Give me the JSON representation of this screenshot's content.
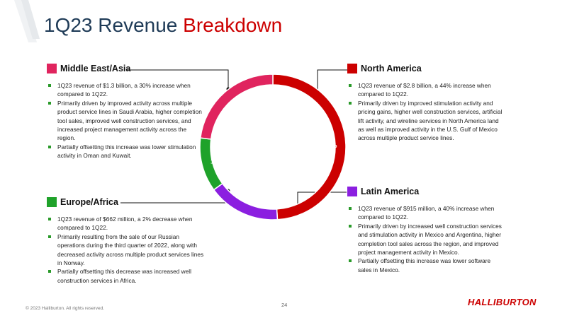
{
  "title": {
    "part1": "1Q23 Revenue",
    "part2": "Breakdown"
  },
  "colors": {
    "middle_east_asia": "#e0245e",
    "north_america": "#cc0000",
    "europe_africa": "#1fa22a",
    "latin_america": "#8b1fe0",
    "title_dark": "#1f3b57",
    "accent": "#cc0000",
    "bullet": "#2a9a2a"
  },
  "chart_data": {
    "type": "pie",
    "categories": [
      "North America",
      "Latin America",
      "Europe/Africa",
      "Middle East/Asia"
    ],
    "values": [
      49,
      16,
      12,
      23
    ],
    "labels": [
      "49%",
      "16%",
      "12%",
      "23%"
    ]
  },
  "regions": {
    "middle_east_asia": {
      "name": "Middle East/Asia",
      "bullets": [
        "1Q23 revenue of $1.3 billion, a 30% increase when compared to 1Q22.",
        "Primarily driven by improved activity across multiple product service lines in Saudi Arabia, higher completion tool sales, improved well construction services, and increased project management activity across the region.",
        "Partially offsetting this increase was lower stimulation activity in Oman and Kuwait."
      ]
    },
    "north_america": {
      "name": "North America",
      "bullets": [
        "1Q23 revenue of $2.8 billion, a 44% increase when compared to 1Q22.",
        "Primarily driven by improved stimulation activity and pricing gains, higher well construction services, artificial lift activity, and wireline services in North America land as well as improved activity in the U.S. Gulf of Mexico across multiple product service lines."
      ]
    },
    "europe_africa": {
      "name": "Europe/Africa",
      "bullets": [
        "1Q23 revenue of $662 million, a 2% decrease when compared to 1Q22.",
        "Primarily resulting from the sale of our Russian operations during the third quarter of 2022, along with decreased activity across multiple product services lines in Norway.",
        "Partially offsetting this decrease was increased well construction services in Africa."
      ]
    },
    "latin_america": {
      "name": "Latin America",
      "bullets": [
        "1Q23 revenue of $915 million, a 40% increase when compared to 1Q22.",
        "Primarily driven by increased well construction services and stimulation activity in Mexico and Argentina, higher completion tool sales across the region, and improved project management activity in Mexico.",
        "Partially offsetting this increase was lower software sales in Mexico."
      ]
    }
  },
  "footer": {
    "copyright": "© 2023 Halliburton. All rights reserved.",
    "page_number": "24",
    "logo_text": "HALLIBURTON"
  }
}
